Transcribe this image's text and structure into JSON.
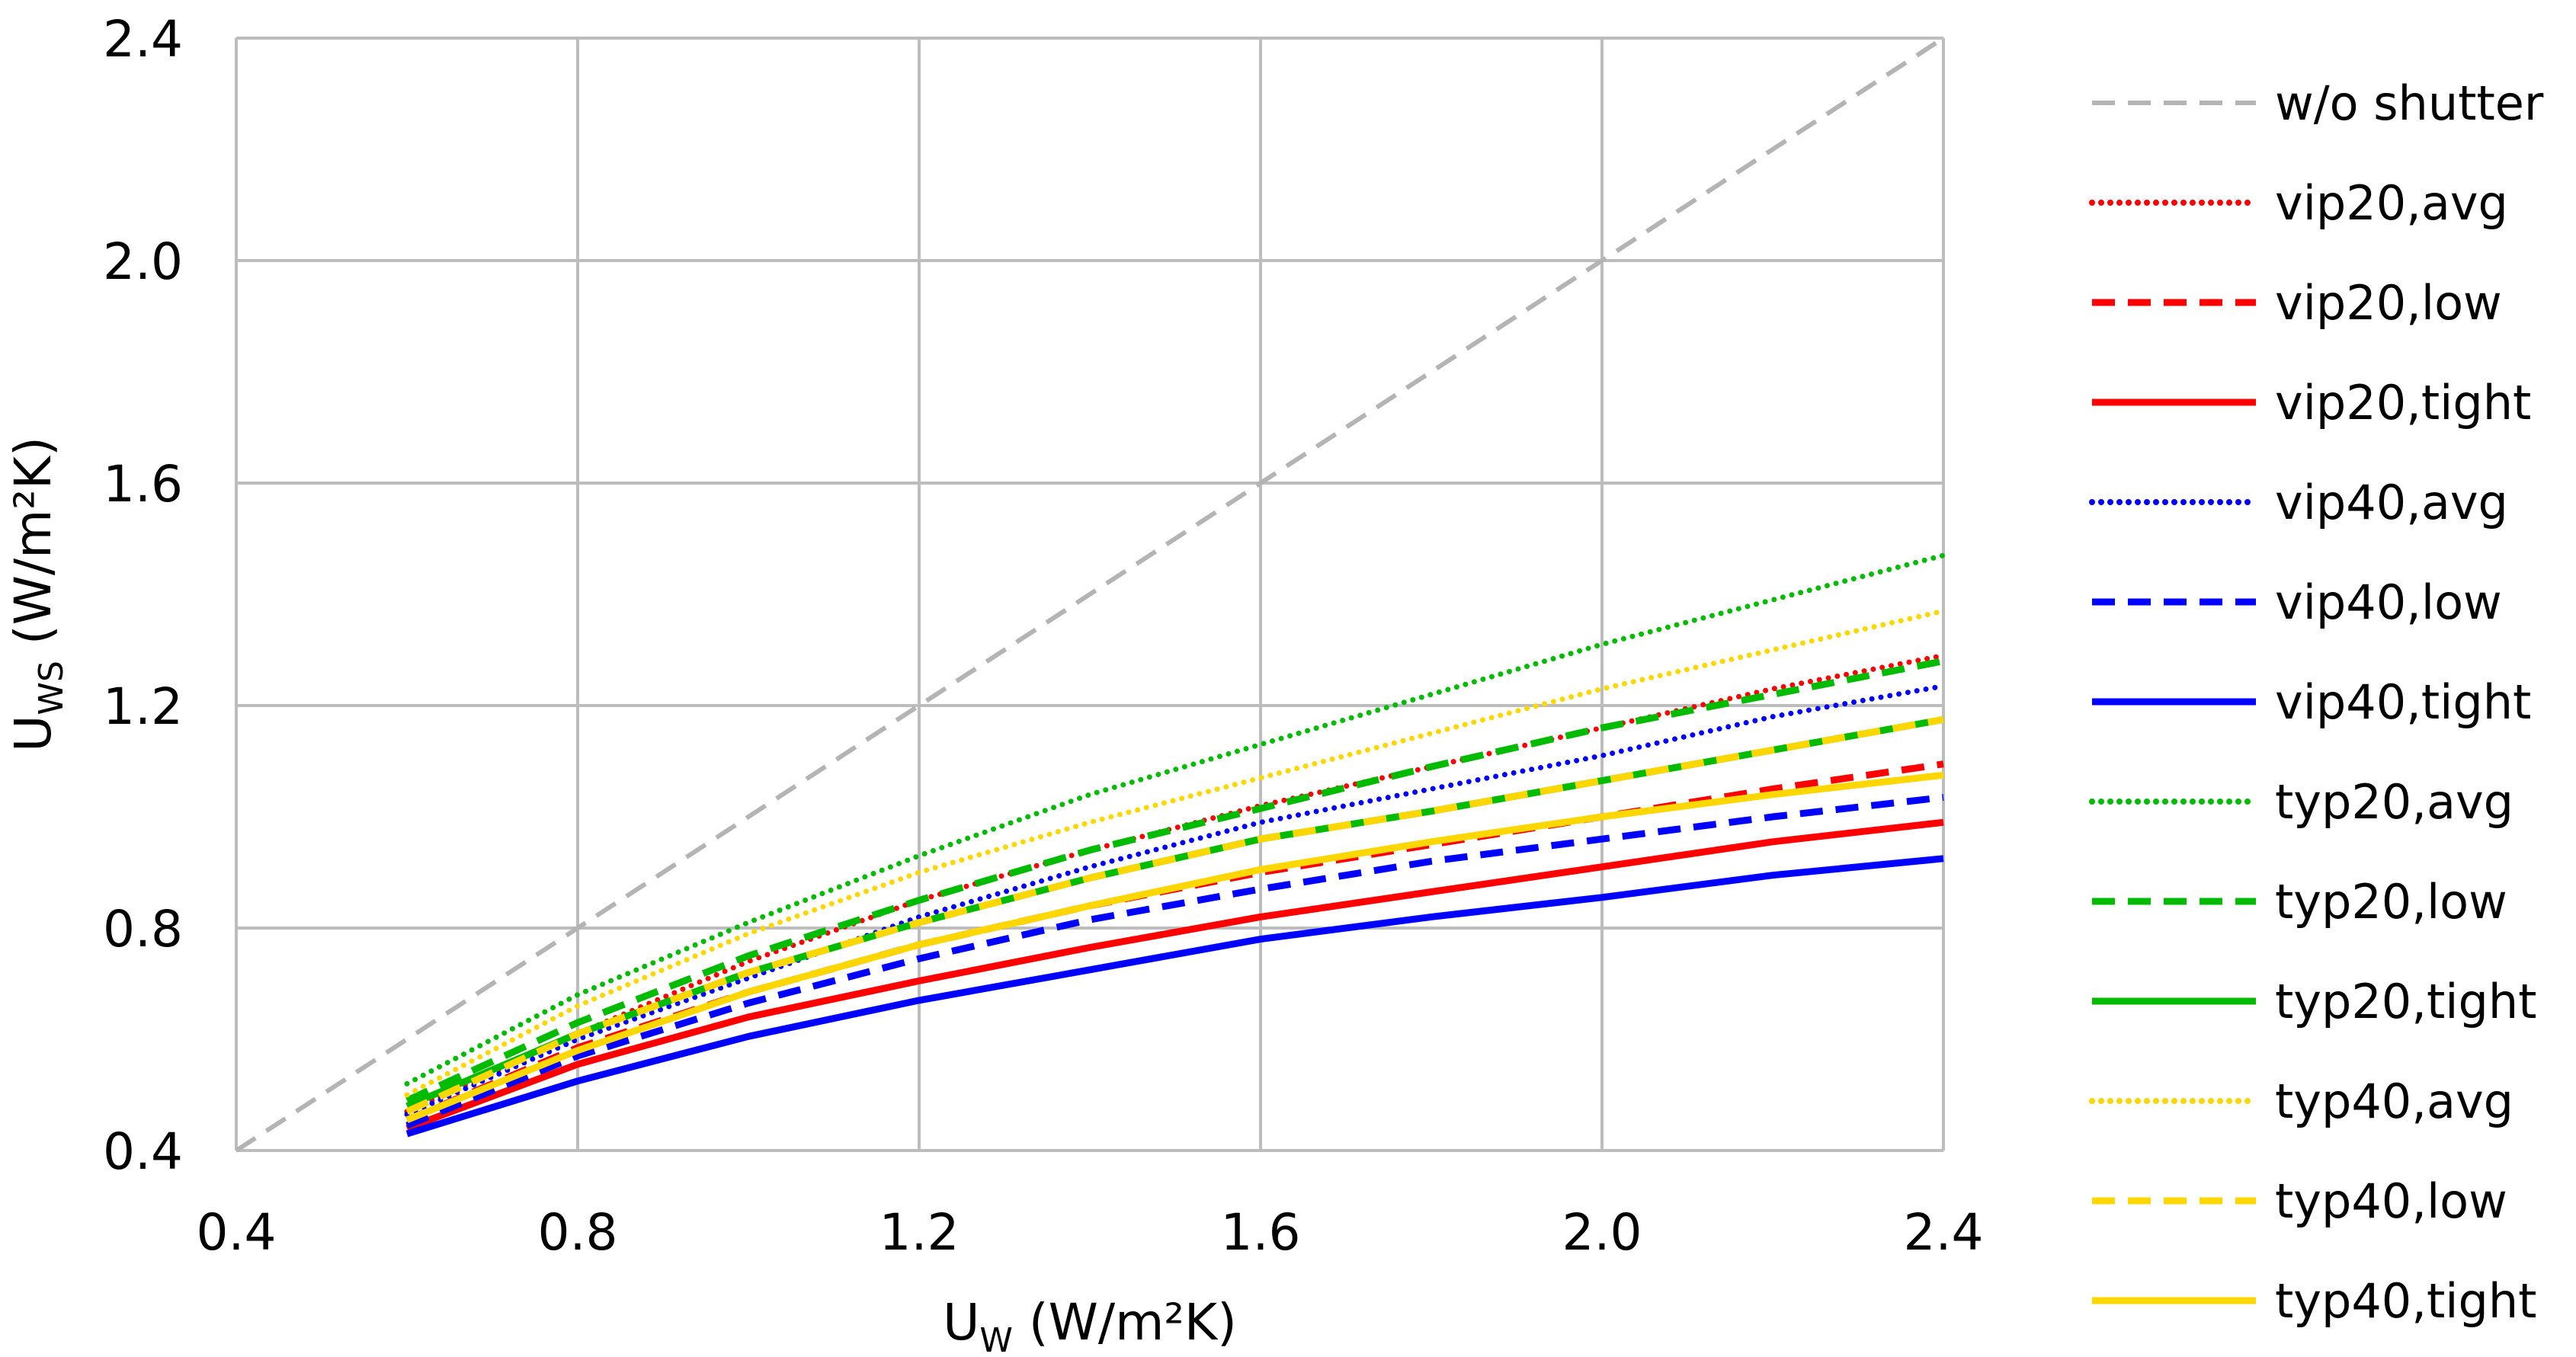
{
  "chart_data": {
    "type": "line",
    "title": "",
    "xlabel": {
      "main": "U",
      "sub": "W",
      "unit": " (W/m²K)"
    },
    "ylabel": {
      "main": "U",
      "sub": "WS",
      "unit": " (W/m²K)"
    },
    "xlim": [
      0.4,
      2.4
    ],
    "ylim": [
      0.4,
      2.4
    ],
    "xticks": [
      "0.4",
      "0.8",
      "1.2",
      "1.6",
      "2.0",
      "2.4"
    ],
    "yticks": [
      "0.4",
      "0.8",
      "1.2",
      "1.6",
      "2.0",
      "2.4"
    ],
    "grid": true,
    "legend_position": "right",
    "x": [
      0.6,
      0.8,
      1.0,
      1.2,
      1.4,
      1.6,
      1.8,
      2.0,
      2.2,
      2.4
    ],
    "series": [
      {
        "name": "w/o shutter",
        "color": "#b4b4b4",
        "style": "dashed",
        "x": [
          0.4,
          2.4
        ],
        "values": [
          0.4,
          2.4
        ]
      },
      {
        "name": "vip20,avg",
        "color": "#ff0000",
        "style": "dotted",
        "values": [
          0.47,
          0.61,
          0.74,
          0.85,
          0.94,
          1.02,
          1.09,
          1.16,
          1.23,
          1.29
        ]
      },
      {
        "name": "vip20,low",
        "color": "#ff0000",
        "style": "dashed",
        "values": [
          0.455,
          0.585,
          0.685,
          0.77,
          0.84,
          0.9,
          0.95,
          1.0,
          1.05,
          1.095
        ]
      },
      {
        "name": "vip20,tight",
        "color": "#ff0000",
        "style": "solid",
        "values": [
          0.44,
          0.555,
          0.64,
          0.705,
          0.765,
          0.82,
          0.865,
          0.91,
          0.955,
          0.99
        ]
      },
      {
        "name": "vip40,avg",
        "color": "#0000ff",
        "style": "dotted",
        "values": [
          0.465,
          0.6,
          0.71,
          0.82,
          0.91,
          0.99,
          1.05,
          1.11,
          1.18,
          1.235
        ]
      },
      {
        "name": "vip40,low",
        "color": "#0000ff",
        "style": "dashed",
        "values": [
          0.445,
          0.57,
          0.665,
          0.745,
          0.815,
          0.87,
          0.92,
          0.96,
          1.0,
          1.035
        ]
      },
      {
        "name": "vip40,tight",
        "color": "#0000ff",
        "style": "solid",
        "values": [
          0.43,
          0.525,
          0.605,
          0.67,
          0.725,
          0.78,
          0.82,
          0.855,
          0.895,
          0.925
        ]
      },
      {
        "name": "typ20,avg",
        "color": "#00bb00",
        "style": "dotted",
        "values": [
          0.52,
          0.68,
          0.81,
          0.93,
          1.04,
          1.13,
          1.22,
          1.31,
          1.39,
          1.47
        ]
      },
      {
        "name": "typ20,low",
        "color": "#00bb00",
        "style": "dashed",
        "values": [
          0.49,
          0.63,
          0.75,
          0.85,
          0.94,
          1.015,
          1.09,
          1.16,
          1.22,
          1.28
        ]
      },
      {
        "name": "typ20,tight",
        "color": "#00bb00",
        "style": "solid",
        "values": [
          0.48,
          0.61,
          0.72,
          0.81,
          0.89,
          0.96,
          1.01,
          1.065,
          1.12,
          1.175
        ]
      },
      {
        "name": "typ40,avg",
        "color": "#ffd700",
        "style": "dotted",
        "values": [
          0.5,
          0.66,
          0.79,
          0.9,
          0.99,
          1.07,
          1.15,
          1.23,
          1.3,
          1.37
        ]
      },
      {
        "name": "typ40,low",
        "color": "#ffd700",
        "style": "dashed",
        "values": [
          0.47,
          0.61,
          0.72,
          0.81,
          0.89,
          0.96,
          1.01,
          1.065,
          1.12,
          1.175
        ]
      },
      {
        "name": "typ40,tight",
        "color": "#ffd700",
        "style": "solid",
        "values": [
          0.455,
          0.58,
          0.685,
          0.77,
          0.84,
          0.905,
          0.955,
          1.0,
          1.04,
          1.075
        ]
      }
    ]
  }
}
